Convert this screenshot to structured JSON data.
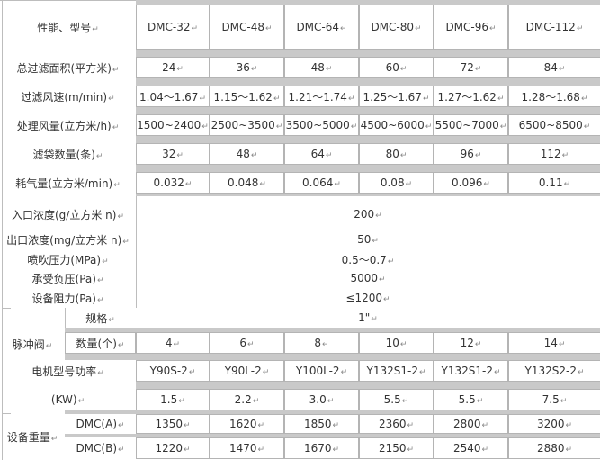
{
  "header": {
    "label": "性能、型号",
    "models": [
      "DMC-32",
      "DMC-48",
      "DMC-64",
      "DMC-80",
      "DMC-96",
      "DMC-112"
    ]
  },
  "rows": [
    {
      "label": "总过滤面积(平方米)",
      "values": [
        "24",
        "36",
        "48",
        "60",
        "72",
        "84"
      ]
    },
    {
      "label": "过滤风速(m/min)",
      "values": [
        "1.04～1.67",
        "1.15～1.62",
        "1.21～1.74",
        "1.25～1.67",
        "1.27～1.62",
        "1.28～1.68"
      ]
    },
    {
      "label": "处理风量(立方米/h)",
      "values": [
        "1500~2400",
        "2500~3500",
        "3500~5000",
        "4500~6000",
        "5500~7000",
        "6500~8500"
      ]
    },
    {
      "label": "滤袋数量(条)",
      "values": [
        "32",
        "48",
        "64",
        "80",
        "96",
        "112"
      ]
    },
    {
      "label": "耗气量(立方米/min)",
      "values": [
        "0.032",
        "0.048",
        "0.064",
        "0.08",
        "0.096",
        "0.11"
      ]
    }
  ],
  "common": [
    {
      "label": "入口浓度(g/立方米 n)",
      "value": "200"
    },
    {
      "label": "出口浓度(mg/立方米 n)",
      "value": "50"
    },
    {
      "label": "喷吹压力(MPa)",
      "value": "0.5～0.7"
    },
    {
      "label": "承受负压(Pa)",
      "value": "5000"
    },
    {
      "label": "设备阻力(Pa)",
      "value": "≤1200"
    }
  ],
  "valve": {
    "label": "脉冲阀",
    "spec_label": "规格",
    "spec_value": "1\"",
    "qty_label": "数量(个)",
    "qty_values": [
      "4",
      "6",
      "8",
      "10",
      "12",
      "14"
    ]
  },
  "motor": {
    "label": "电机型号功率",
    "models": [
      "Y90S-2",
      "Y90L-2",
      "Y100L-2",
      "Y132S1-2",
      "Y132S1-2",
      "Y132S2-2"
    ],
    "power_label": "(KW)",
    "power": [
      "1.5",
      "2.2",
      "3.0",
      "5.5",
      "5.5",
      "7.5"
    ]
  },
  "weight": {
    "label": "设备重量",
    "a_label": "DMC(A)",
    "a_values": [
      "1350",
      "1620",
      "1850",
      "2360",
      "2800",
      "3200"
    ],
    "b_label": "DMC(B)",
    "b_values": [
      "1220",
      "1470",
      "1670",
      "2150",
      "2540",
      "2880"
    ]
  }
}
